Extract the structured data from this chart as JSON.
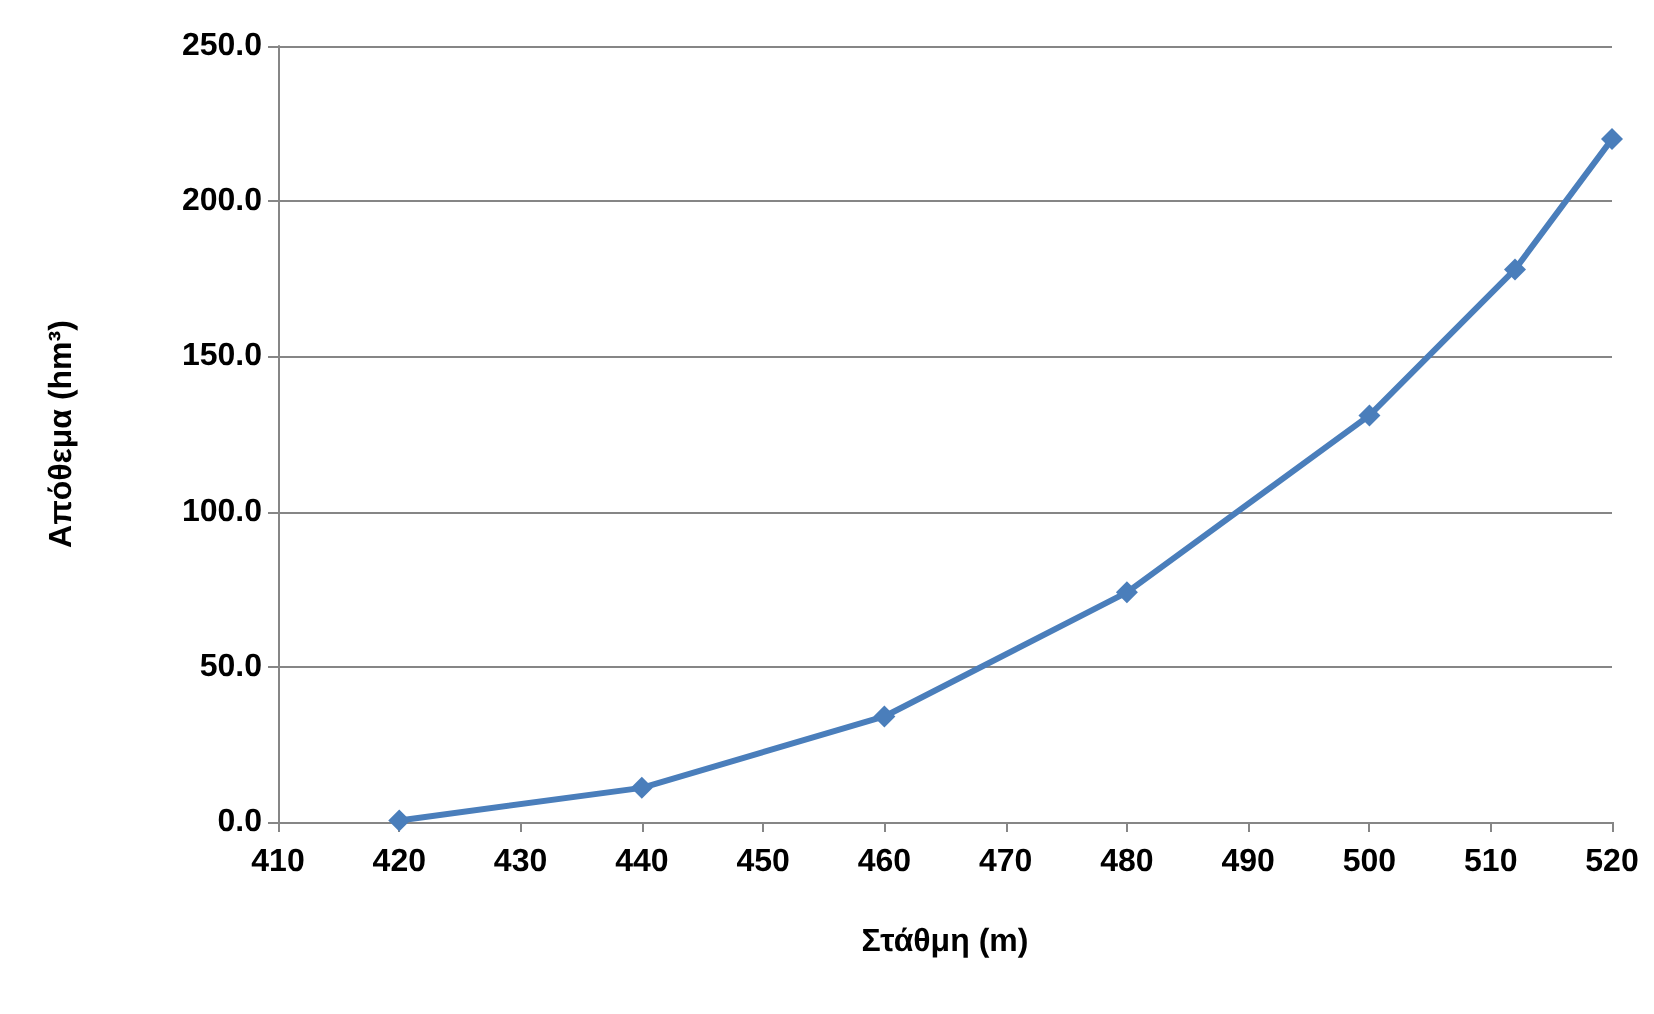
{
  "chart_data": {
    "type": "line",
    "xlabel": "Στάθμη (m)",
    "ylabel": "Απόθεμα (hm³)",
    "x": [
      420,
      440,
      460,
      480,
      500,
      512,
      520
    ],
    "series": [
      {
        "color": "#4a7ebb",
        "values": [
          0.5,
          11,
          34,
          74,
          131,
          178,
          220
        ]
      }
    ],
    "xlim": [
      410,
      520
    ],
    "xticks": [
      410,
      420,
      430,
      440,
      450,
      460,
      470,
      480,
      490,
      500,
      510,
      520
    ],
    "ylim": [
      0,
      250
    ],
    "yticks": [
      {
        "value": 0,
        "label": "0.0"
      },
      {
        "value": 50,
        "label": "50.0"
      },
      {
        "value": 100,
        "label": "100.0"
      },
      {
        "value": 150,
        "label": "150.0"
      },
      {
        "value": 200,
        "label": "200.0"
      },
      {
        "value": 250,
        "label": "250.0"
      }
    ],
    "grid": "y",
    "marker": "diamond",
    "line_style": "solid"
  }
}
